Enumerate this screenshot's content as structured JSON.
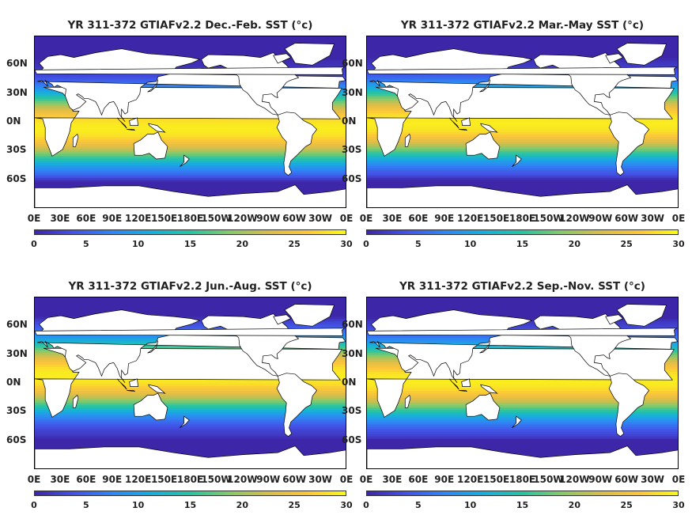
{
  "colormap": [
    "#3e26a8",
    "#4352e6",
    "#2f86f5",
    "#17aedd",
    "#27c4a2",
    "#84ca6a",
    "#d7bd4b",
    "#fcc43b",
    "#f9fb15"
  ],
  "land_color": "#ffffff",
  "panels": [
    {
      "title": "YR 311-372 GTIAFv2.2 Dec.-Feb. SST (°c)",
      "season": "DJF"
    },
    {
      "title": "YR 311-372 GTIAFv2.2 Mar.-May SST (°c)",
      "season": "MAM"
    },
    {
      "title": "YR 311-372 GTIAFv2.2 Jun.-Aug. SST (°c)",
      "season": "JJA"
    },
    {
      "title": "YR 311-372 GTIAFv2.2 Sep.-Nov. SST (°c)",
      "season": "SON"
    }
  ],
  "lat_labels": [
    "60N",
    "30N",
    "0N",
    "30S",
    "60S"
  ],
  "lon_labels": [
    "0E",
    "30E",
    "60E",
    "90E",
    "120E",
    "150E",
    "180E",
    "150W",
    "120W",
    "90W",
    "60W",
    "30W",
    "0E"
  ],
  "colorbar_ticks": [
    "0",
    "5",
    "10",
    "15",
    "20",
    "25",
    "30"
  ],
  "colorbar_range": [
    0,
    30
  ]
}
